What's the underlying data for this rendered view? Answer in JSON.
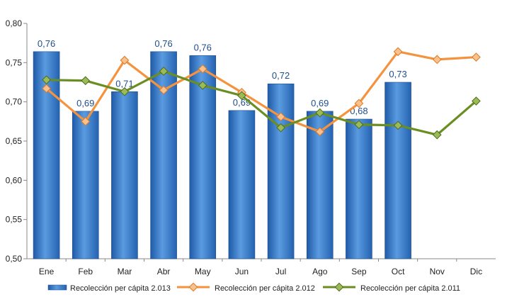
{
  "chart_data": {
    "type": "bar",
    "categories": [
      "Ene",
      "Feb",
      "Mar",
      "Abr",
      "May",
      "Jun",
      "Jul",
      "Ago",
      "Sep",
      "Oct",
      "Nov",
      "Dic"
    ],
    "ylim": [
      0.5,
      0.8
    ],
    "yticks": [
      "0,50",
      "0,55",
      "0,60",
      "0,65",
      "0,70",
      "0,75",
      "0,80"
    ],
    "grid": false,
    "legend_position": "bottom",
    "series": [
      {
        "name": "Recolección per cápita 2.013",
        "kind": "bar",
        "color": "#3f7fcf",
        "values": [
          0.764,
          0.688,
          0.713,
          0.764,
          0.759,
          0.689,
          0.723,
          0.688,
          0.678,
          0.725,
          null,
          null
        ],
        "labels": [
          "0,76",
          "0,69",
          "0,71",
          "0,76",
          "0,76",
          "0,69",
          "0,72",
          "0,69",
          "0,68",
          "0,73",
          "",
          ""
        ]
      },
      {
        "name": "Recolección per cápita 2.012",
        "kind": "line",
        "color": "#f5923e",
        "values": [
          0.717,
          0.675,
          0.753,
          0.715,
          0.742,
          0.712,
          0.681,
          0.662,
          0.698,
          0.764,
          0.754,
          0.757
        ]
      },
      {
        "name": "Recolección per cápita 2.011",
        "kind": "line",
        "color": "#6b8e23",
        "values": [
          0.728,
          0.727,
          0.713,
          0.739,
          0.721,
          0.708,
          0.667,
          0.686,
          0.671,
          0.67,
          0.658,
          0.701
        ]
      }
    ]
  }
}
